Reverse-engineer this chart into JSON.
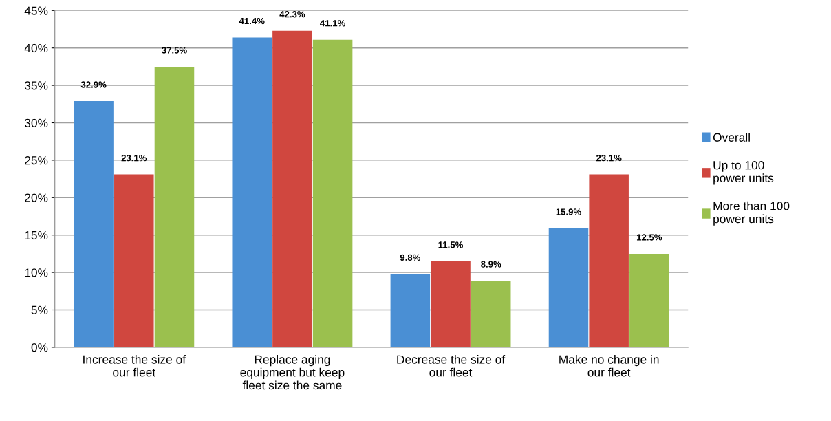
{
  "chart_data": {
    "type": "bar",
    "categories": [
      "Increase the size of\nour fleet",
      "Replace aging\nequipment but keep\nfleet size the same",
      "Decrease the size of\nour fleet",
      "Make no change in\nour fleet"
    ],
    "series": [
      {
        "name": "Overall",
        "color": "#4a8fd4",
        "values": [
          32.9,
          41.4,
          9.8,
          15.9
        ],
        "value_labels": [
          "32.9%",
          "41.4%",
          "9.8%",
          "15.9%"
        ]
      },
      {
        "name": "Up to 100\npower units",
        "color": "#d0473f",
        "values": [
          23.1,
          42.3,
          11.5,
          23.1
        ],
        "value_labels": [
          "23.1%",
          "42.3%",
          "11.5%",
          "23.1%"
        ]
      },
      {
        "name": "More than 100\npower units",
        "color": "#9bc04e",
        "values": [
          37.5,
          41.1,
          8.9,
          12.5
        ],
        "value_labels": [
          "37.5%",
          "41.1%",
          "8.9%",
          "12.5%"
        ]
      }
    ],
    "ylim": [
      0,
      45
    ],
    "yticks": [
      {
        "value": 0,
        "label": "0%"
      },
      {
        "value": 5,
        "label": "5%"
      },
      {
        "value": 10,
        "label": "10%"
      },
      {
        "value": 15,
        "label": "15%"
      },
      {
        "value": 20,
        "label": "20%"
      },
      {
        "value": 25,
        "label": "25%"
      },
      {
        "value": 30,
        "label": "30%"
      },
      {
        "value": 35,
        "label": "35%"
      },
      {
        "value": 40,
        "label": "40%"
      },
      {
        "value": 45,
        "label": "45%"
      }
    ],
    "grid": "y",
    "legend": "right"
  }
}
